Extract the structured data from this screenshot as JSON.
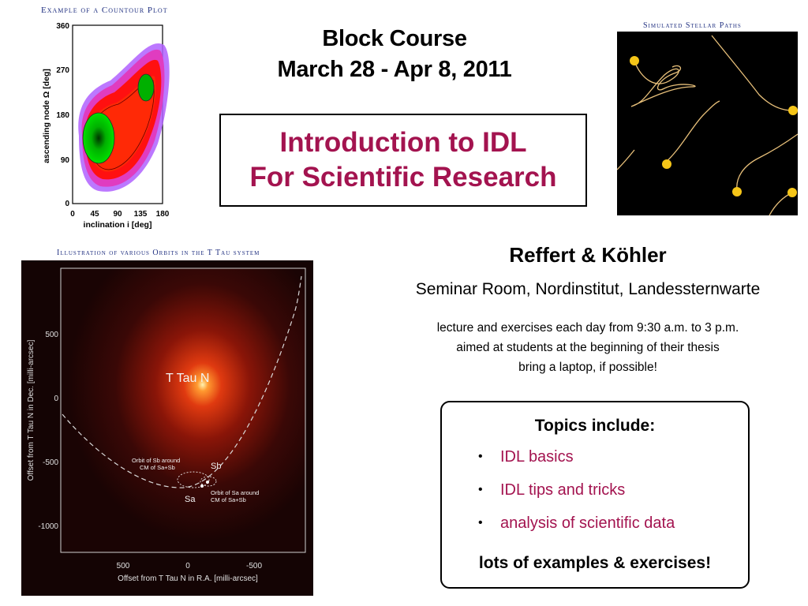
{
  "contour_plot": {
    "caption": "Example of a Countour Plot",
    "ylabel": "ascending node Ω [deg]",
    "xlabel": "inclination i [deg]",
    "yticks": [
      "360",
      "270",
      "180",
      "90",
      "0"
    ],
    "xticks": [
      "0",
      "45",
      "90",
      "135",
      "180"
    ]
  },
  "course": {
    "line1": "Block Course",
    "line2": "March 28 - Apr 8, 2011"
  },
  "title": {
    "line1": "Introduction to IDL",
    "line2": "For Scientific Research"
  },
  "stellar_paths": {
    "caption": "Simulated Stellar Paths"
  },
  "orbit_image": {
    "caption": "Illustration of various Orbits in the T Tau system",
    "label_main": "T Tau N",
    "label_sb": "Sb",
    "label_sa": "Sa",
    "orbit_sb_line1": "Orbit of Sb around",
    "orbit_sb_line2": "CM of Sa+Sb",
    "orbit_sa_line1": "Orbit of Sa around",
    "orbit_sa_line2": "CM of Sa+Sb",
    "ylabel": "Offset from T Tau N in Dec. [milli-arcsec]",
    "xlabel": "Offset from T Tau N in R.A. [milli-arcsec]",
    "yticks": [
      "500",
      "0",
      "-500",
      "-1000"
    ],
    "xticks": [
      "500",
      "0",
      "-500"
    ]
  },
  "authors": "Reffert & Köhler",
  "venue": "Seminar Room, Nordinstitut, Landessternwarte",
  "details": [
    "lecture and exercises each day from 9:30 a.m. to 3 p.m.",
    "aimed at students at the beginning of their thesis",
    "bring a laptop, if possible!"
  ],
  "topics": {
    "title": "Topics include:",
    "items": [
      "IDL basics",
      "IDL tips and tricks",
      "analysis of scientific data"
    ],
    "closing": "lots of examples & exercises!"
  },
  "colors": {
    "title": "#a3134f",
    "caption": "#1f2f80",
    "star_dot": "#f5c518"
  }
}
